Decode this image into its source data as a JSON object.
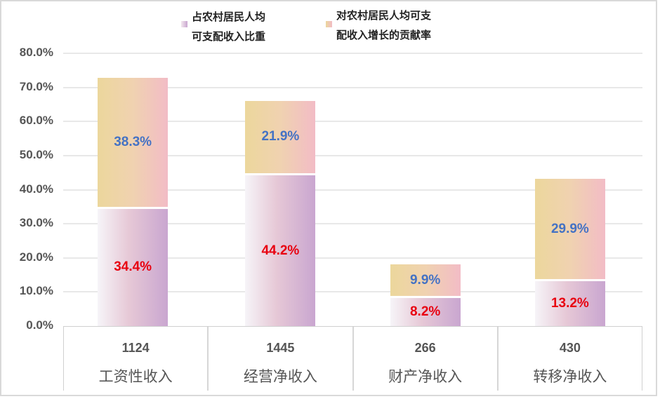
{
  "chart_data": {
    "type": "bar",
    "stacked": true,
    "title": "",
    "xlabel": "",
    "ylabel": "",
    "ylim": [
      0,
      80
    ],
    "y_ticks": [
      "0.0%",
      "10.0%",
      "20.0%",
      "30.0%",
      "40.0%",
      "50.0%",
      "60.0%",
      "70.0%",
      "80.0%"
    ],
    "grid": true,
    "legend_position": "top",
    "categories": [
      "工资性收入",
      "经营净收入",
      "财产净收入",
      "转移净收入"
    ],
    "category_values": [
      "1124",
      "1445",
      "266",
      "430"
    ],
    "series": [
      {
        "name": "占农村居民人均可支配收入比重",
        "values": [
          34.4,
          44.2,
          8.2,
          13.2
        ],
        "labels": [
          "34.4%",
          "44.2%",
          "8.2%",
          "13.2%"
        ],
        "label_color": "#e8000f"
      },
      {
        "name": "对农村居民人均可支配收入增长的贡献率",
        "values": [
          38.3,
          21.9,
          9.9,
          29.9
        ],
        "labels": [
          "38.3%",
          "21.9%",
          "9.9%",
          "29.9%"
        ],
        "label_color": "#4472c4"
      }
    ]
  },
  "legend": {
    "item1_line1": "占农村居民人均",
    "item1_line2": "可支配收入比重",
    "item2_line1": "对农村居民人均可支",
    "item2_line2": "配收入增长的贡献率"
  }
}
